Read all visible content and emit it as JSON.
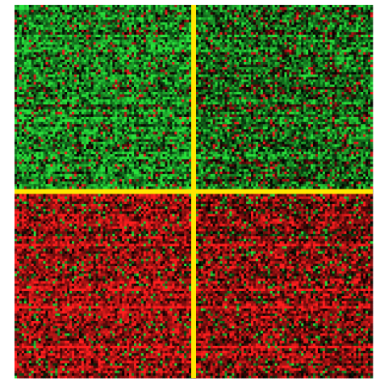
{
  "chart_data": {
    "type": "heatmap",
    "title": "",
    "xlabel": "",
    "ylabel": "",
    "grid": false,
    "legend": "none",
    "colors": {
      "high": "#ff1e1e",
      "low": "#28e13c",
      "neutral": "#000000",
      "divider": "#ffe600",
      "background": "#ffffff"
    },
    "blocks": [
      {
        "name": "top-left",
        "row_group": "upper",
        "col_group": "left",
        "dominant": "low",
        "mean_signal": -0.62
      },
      {
        "name": "top-right",
        "row_group": "upper",
        "col_group": "right",
        "dominant": "low",
        "mean_signal": -0.45
      },
      {
        "name": "bottom-left",
        "row_group": "lower",
        "col_group": "left",
        "dominant": "high",
        "mean_signal": 0.68
      },
      {
        "name": "bottom-right",
        "row_group": "lower",
        "col_group": "right",
        "dominant": "high",
        "mean_signal": 0.55
      }
    ],
    "grid_size": {
      "rows": 150,
      "cols": 150
    },
    "row_split_fraction": 0.5,
    "col_split_fraction": 0.5
  }
}
